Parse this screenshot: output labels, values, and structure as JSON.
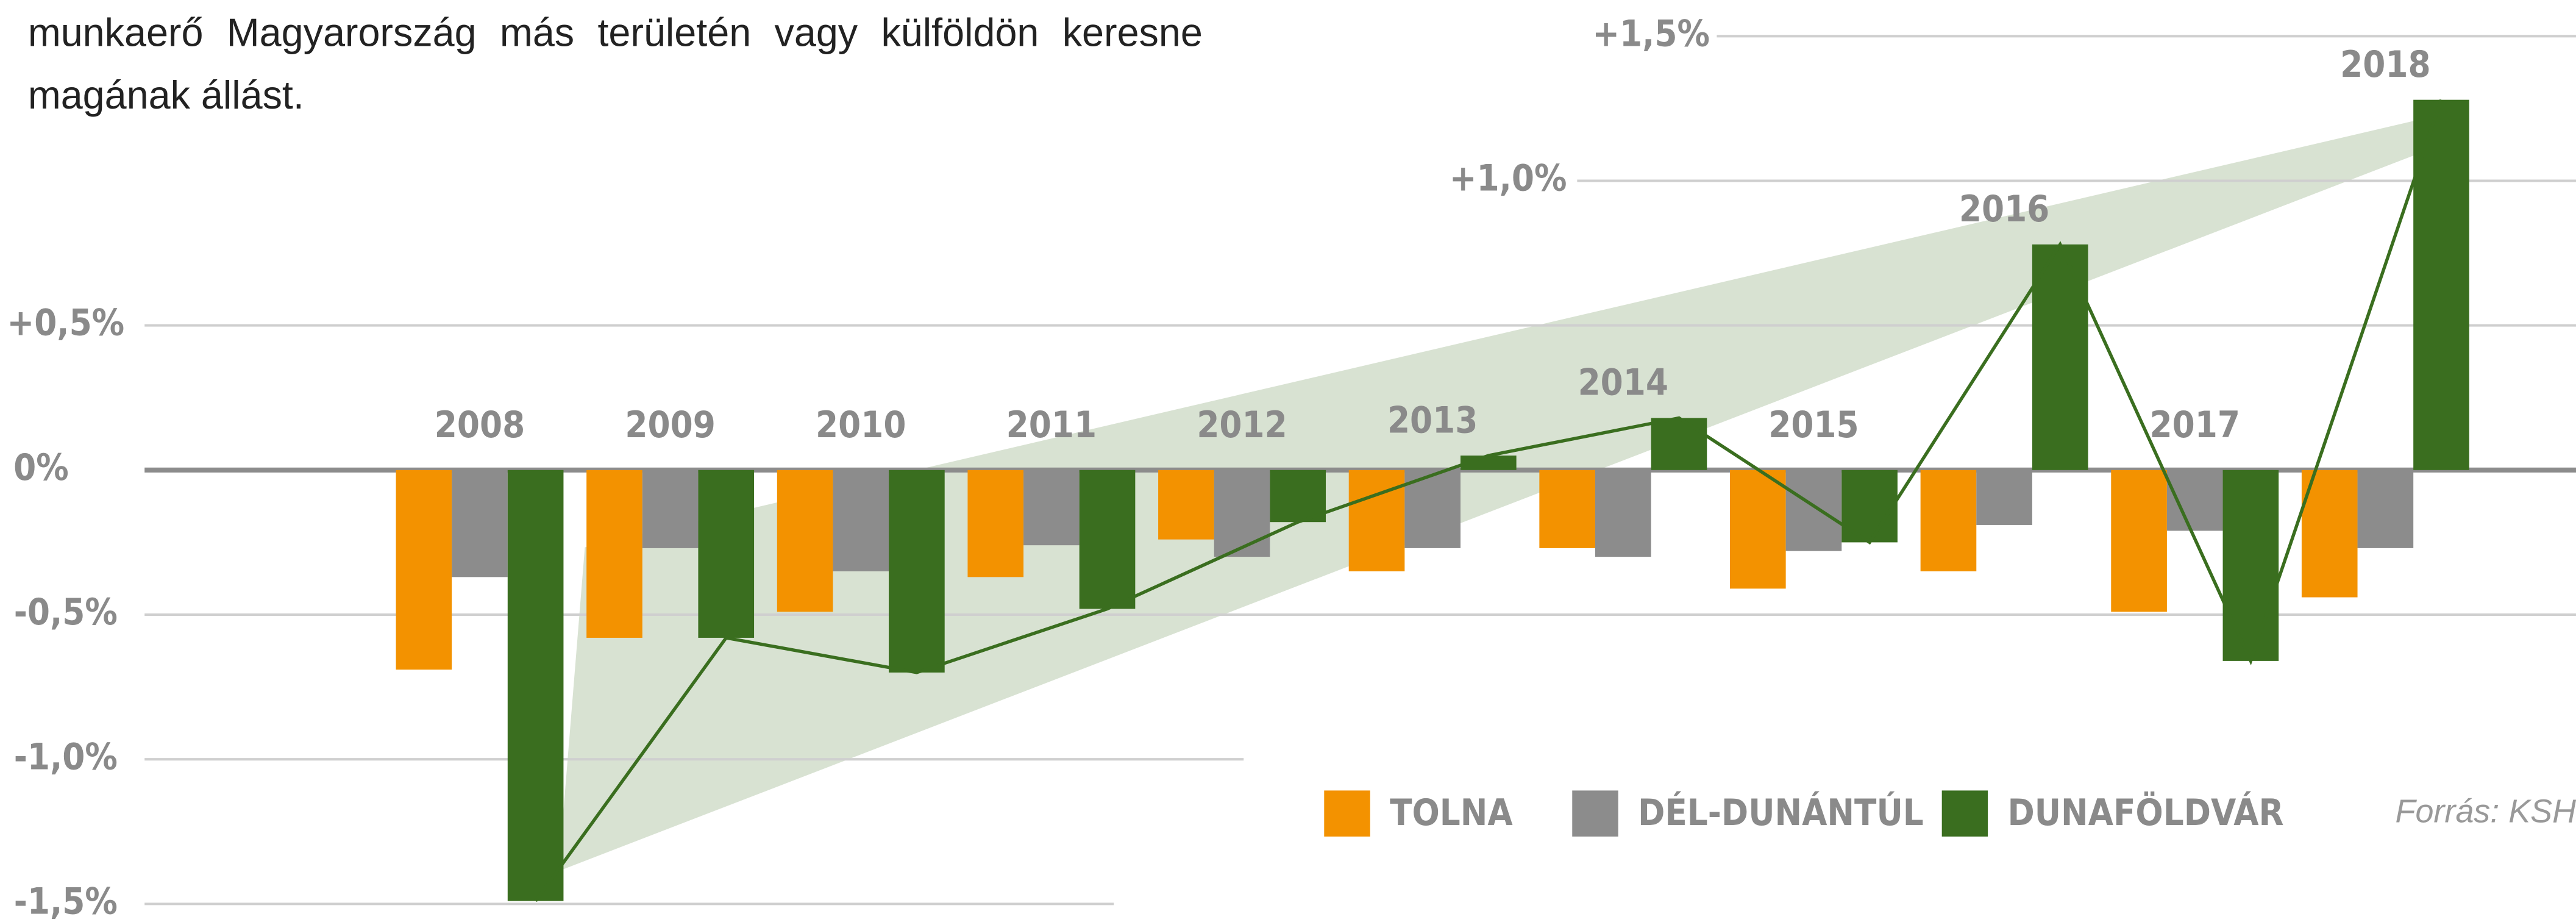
{
  "intro": "A Pannonia Bio hiányában ez a fiatal, túlnyomórészt jól képzett munkaerő Magyarország más területén vagy külföldön keresne magának állást.",
  "chart_data": {
    "type": "bar",
    "categories": [
      "2008",
      "2009",
      "2010",
      "2011",
      "2012",
      "2013",
      "2014",
      "2015",
      "2016",
      "2017",
      "2018"
    ],
    "series": [
      {
        "name": "TOLNA",
        "color": "#f39200",
        "values": [
          -0.69,
          -0.58,
          -0.49,
          -0.37,
          -0.24,
          -0.35,
          -0.27,
          -0.41,
          -0.35,
          -0.49,
          -0.44
        ]
      },
      {
        "name": "DÉL-DUNÁNTÚL",
        "color": "#8c8c8c",
        "values": [
          -0.37,
          -0.27,
          -0.35,
          -0.26,
          -0.3,
          -0.27,
          -0.3,
          -0.28,
          -0.19,
          -0.21,
          -0.27
        ]
      },
      {
        "name": "DUNAFÖLDVÁR",
        "color": "#3a6e1f",
        "values": [
          -1.49,
          -0.58,
          -0.7,
          -0.48,
          -0.18,
          0.05,
          0.18,
          -0.25,
          0.78,
          -0.66,
          1.28
        ]
      }
    ],
    "ylim": [
      -1.5,
      1.5
    ],
    "yticks": [
      {
        "value": 1.5,
        "label": "+1,5%"
      },
      {
        "value": 1.0,
        "label": "+1,0%"
      },
      {
        "value": 0.5,
        "label": "+0,5%"
      },
      {
        "value": 0,
        "label": "0%"
      },
      {
        "value": -0.5,
        "label": "-0,5%"
      },
      {
        "value": -1.0,
        "label": "-1,0%"
      },
      {
        "value": -1.5,
        "label": "-1,5%"
      }
    ],
    "grid": true,
    "source": "Forrás: KSH"
  }
}
